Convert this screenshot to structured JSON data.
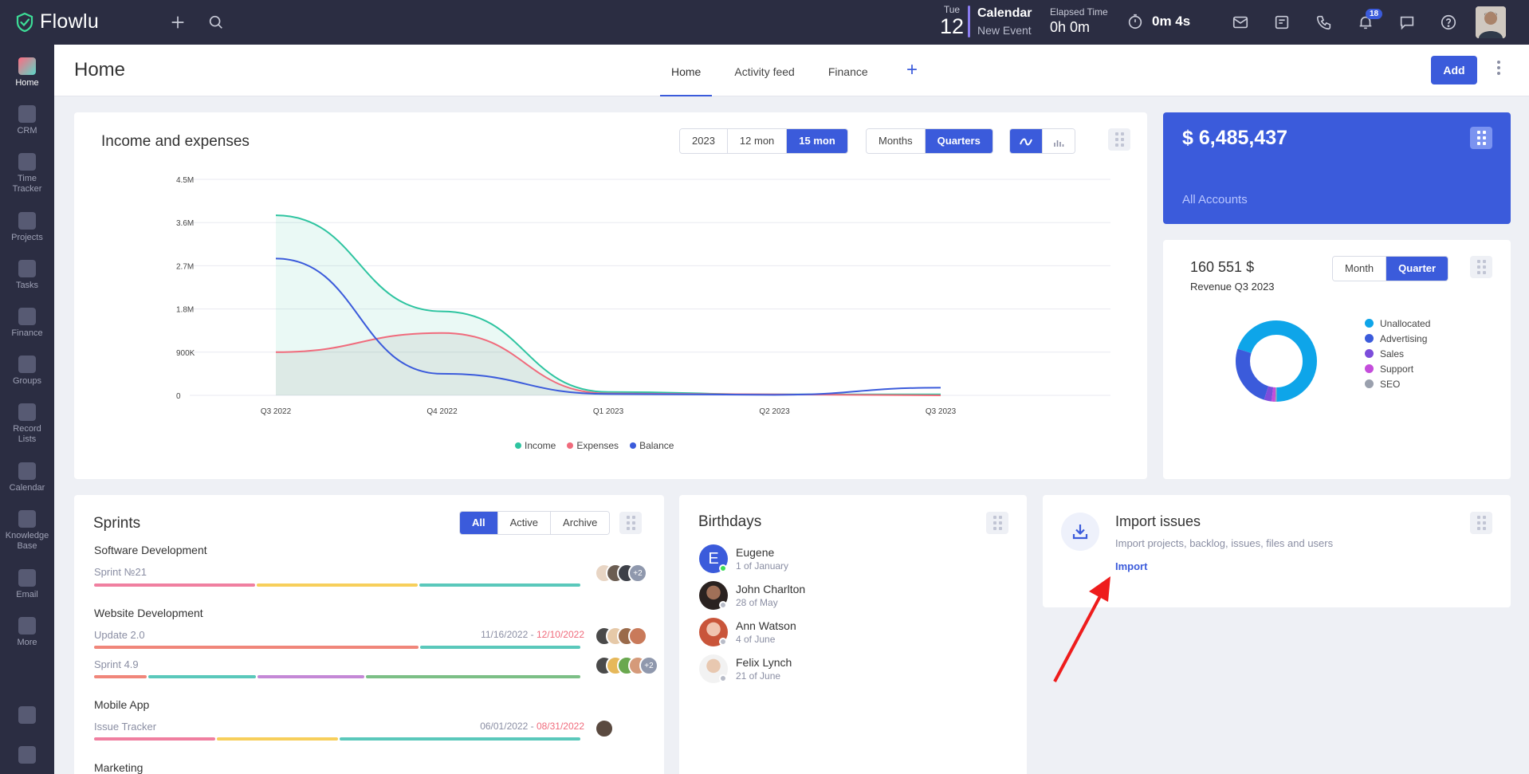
{
  "app": {
    "name": "Flowlu"
  },
  "topbar": {
    "date_day": "Tue",
    "date_num": "12",
    "calendar_title": "Calendar",
    "calendar_sub": "New Event",
    "elapsed_label": "Elapsed Time",
    "elapsed_value": "0h 0m",
    "timer_value": "0m 4s",
    "notifications_count": "18"
  },
  "sidebar": {
    "items": [
      {
        "label": "Home"
      },
      {
        "label": "CRM"
      },
      {
        "label": "Time Tracker"
      },
      {
        "label": "Projects"
      },
      {
        "label": "Tasks"
      },
      {
        "label": "Finance"
      },
      {
        "label": "Groups"
      },
      {
        "label": "Record Lists"
      },
      {
        "label": "Calendar"
      },
      {
        "label": "Knowledge Base"
      },
      {
        "label": "Email"
      },
      {
        "label": "More"
      }
    ]
  },
  "header": {
    "title": "Home",
    "tabs": [
      {
        "label": "Home"
      },
      {
        "label": "Activity feed"
      },
      {
        "label": "Finance"
      }
    ],
    "add_label": "Add"
  },
  "income_card": {
    "title": "Income and expenses",
    "period_buttons": [
      {
        "label": "2023"
      },
      {
        "label": "12 mon"
      },
      {
        "label": "15 mon"
      }
    ],
    "grouping_buttons": [
      {
        "label": "Months"
      },
      {
        "label": "Quarters"
      }
    ],
    "legend": [
      {
        "label": "Income"
      },
      {
        "label": "Expenses"
      },
      {
        "label": "Balance"
      }
    ]
  },
  "chart_data": {
    "type": "area",
    "categories": [
      "Q3 2022",
      "Q4 2022",
      "Q1 2023",
      "Q2 2023",
      "Q3 2023"
    ],
    "y_ticks": [
      "4.5M",
      "3.6M",
      "2.7M",
      "1.8M",
      "900K",
      "0"
    ],
    "ylim": [
      0,
      4500000
    ],
    "series": [
      {
        "name": "Income",
        "color": "#2ec4a0",
        "values": [
          3750000,
          1750000,
          70000,
          20000,
          20000
        ]
      },
      {
        "name": "Expenses",
        "color": "#f06b7c",
        "values": [
          900000,
          1300000,
          40000,
          20000,
          0
        ]
      },
      {
        "name": "Balance",
        "color": "#3b5bdb",
        "values": [
          2850000,
          450000,
          30000,
          10000,
          160000
        ]
      }
    ],
    "legend_position": "bottom",
    "grid": true
  },
  "balance_card": {
    "amount": "$ 6,485,437",
    "label": "All Accounts"
  },
  "revenue_card": {
    "amount": "160 551 $",
    "label": "Revenue Q3 2023",
    "buttons": [
      {
        "label": "Month"
      },
      {
        "label": "Quarter"
      }
    ],
    "segments": [
      {
        "label": "Unallocated",
        "color": "#0ea5e9",
        "value": 70
      },
      {
        "label": "Advertising",
        "color": "#3b5bdb",
        "value": 25
      },
      {
        "label": "Sales",
        "color": "#7c4ddb",
        "value": 3
      },
      {
        "label": "Support",
        "color": "#c44ddb",
        "value": 1.5
      },
      {
        "label": "SEO",
        "color": "#9aa0ad",
        "value": 0.5
      }
    ]
  },
  "sprints_card": {
    "title": "Sprints",
    "filters": [
      {
        "label": "All"
      },
      {
        "label": "Active"
      },
      {
        "label": "Archive"
      }
    ],
    "groups": [
      {
        "name": "Software Development",
        "sprints": [
          {
            "name": "Sprint №21",
            "dates_start": "",
            "dates_end": "",
            "more": "+2"
          }
        ]
      },
      {
        "name": "Website Development",
        "sprints": [
          {
            "name": "Update 2.0",
            "dates_start": "11/16/2022 - ",
            "dates_end": "12/10/2022",
            "more": ""
          },
          {
            "name": "Sprint 4.9",
            "dates_start": "",
            "dates_end": "",
            "more": "+2"
          }
        ]
      },
      {
        "name": "Mobile App",
        "sprints": [
          {
            "name": "Issue Tracker",
            "dates_start": "06/01/2022 - ",
            "dates_end": "08/31/2022",
            "more": ""
          }
        ]
      },
      {
        "name": "Marketing",
        "sprints": []
      }
    ]
  },
  "birthdays_card": {
    "title": "Birthdays",
    "people": [
      {
        "name": "Eugene",
        "date": "1 of January",
        "initial": "E"
      },
      {
        "name": "John Charlton",
        "date": "28 of May",
        "initial": ""
      },
      {
        "name": "Ann Watson",
        "date": "4 of June",
        "initial": ""
      },
      {
        "name": "Felix Lynch",
        "date": "21 of June",
        "initial": ""
      }
    ]
  },
  "import_card": {
    "title": "Import issues",
    "description": "Import projects, backlog, issues, files and users",
    "link": "Import"
  }
}
